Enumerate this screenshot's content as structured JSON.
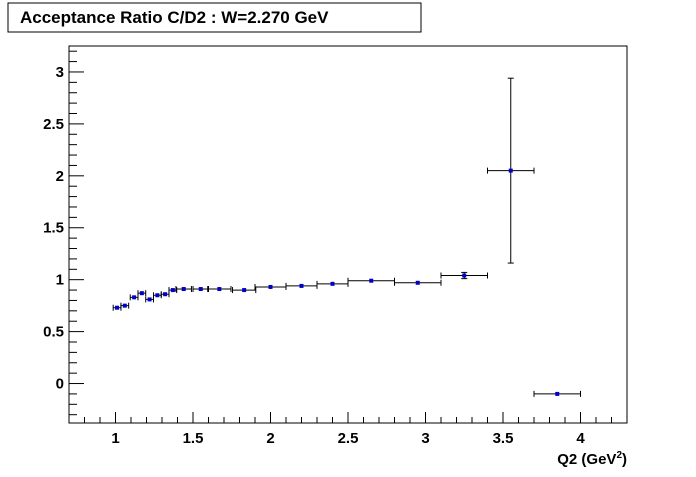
{
  "chart_data": {
    "type": "scatter",
    "title": "Acceptance Ratio C/D2 : W=2.270 GeV",
    "xlabel": {
      "base": "Q2 (GeV",
      "sup": "2",
      "close": ")"
    },
    "ylabel": "",
    "xlim": [
      0.7,
      4.3
    ],
    "ylim": [
      -0.38,
      3.25
    ],
    "x_major_ticks": [
      1,
      1.5,
      2,
      2.5,
      3,
      3.5,
      4
    ],
    "x_tick_labels": [
      "1",
      "1.5",
      "2",
      "2.5",
      "3",
      "3.5",
      "4"
    ],
    "y_major_ticks": [
      0,
      0.5,
      1,
      1.5,
      2,
      2.5,
      3
    ],
    "y_tick_labels": [
      "0",
      "0.5",
      "1",
      "1.5",
      "2",
      "2.5",
      "3"
    ],
    "grid": false,
    "legend": "none",
    "marker_color": "#0000cc",
    "line_color": "#000000",
    "points": [
      {
        "x": 1.01,
        "y": 0.73,
        "xerr": 0.025,
        "yerr": 0.012
      },
      {
        "x": 1.06,
        "y": 0.75,
        "xerr": 0.025,
        "yerr": 0.012
      },
      {
        "x": 1.12,
        "y": 0.83,
        "xerr": 0.025,
        "yerr": 0.012
      },
      {
        "x": 1.17,
        "y": 0.87,
        "xerr": 0.025,
        "yerr": 0.012
      },
      {
        "x": 1.22,
        "y": 0.81,
        "xerr": 0.025,
        "yerr": 0.012
      },
      {
        "x": 1.27,
        "y": 0.85,
        "xerr": 0.025,
        "yerr": 0.012
      },
      {
        "x": 1.32,
        "y": 0.86,
        "xerr": 0.025,
        "yerr": 0.012
      },
      {
        "x": 1.37,
        "y": 0.9,
        "xerr": 0.025,
        "yerr": 0.012
      },
      {
        "x": 1.44,
        "y": 0.91,
        "xerr": 0.05,
        "yerr": 0.012
      },
      {
        "x": 1.55,
        "y": 0.91,
        "xerr": 0.05,
        "yerr": 0.012
      },
      {
        "x": 1.67,
        "y": 0.91,
        "xerr": 0.075,
        "yerr": 0.012
      },
      {
        "x": 1.83,
        "y": 0.9,
        "xerr": 0.075,
        "yerr": 0.012
      },
      {
        "x": 2.0,
        "y": 0.93,
        "xerr": 0.1,
        "yerr": 0.012
      },
      {
        "x": 2.2,
        "y": 0.94,
        "xerr": 0.1,
        "yerr": 0.012
      },
      {
        "x": 2.4,
        "y": 0.96,
        "xerr": 0.1,
        "yerr": 0.012
      },
      {
        "x": 2.65,
        "y": 0.99,
        "xerr": 0.15,
        "yerr": 0.012
      },
      {
        "x": 2.95,
        "y": 0.97,
        "xerr": 0.15,
        "yerr": 0.012
      },
      {
        "x": 3.25,
        "y": 1.04,
        "xerr": 0.15,
        "yerr": 0.03
      },
      {
        "x": 3.55,
        "y": 2.05,
        "xerr": 0.15,
        "yerr": 0.89
      },
      {
        "x": 3.85,
        "y": -0.1,
        "xerr": 0.15,
        "yerr": 0.0
      }
    ]
  }
}
